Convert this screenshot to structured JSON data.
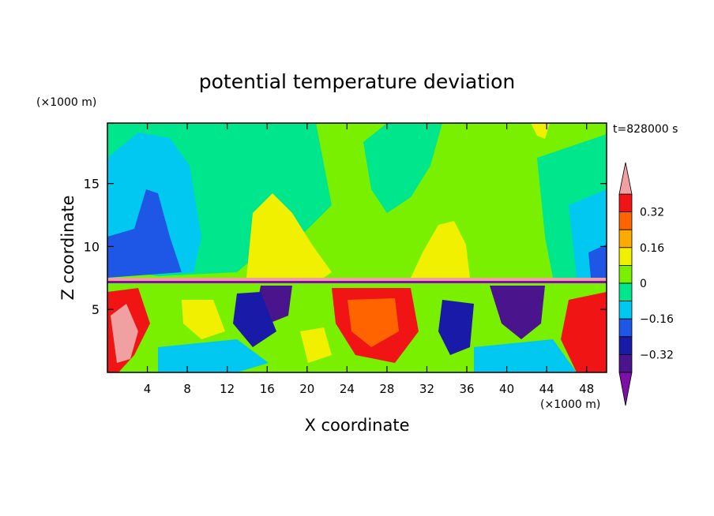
{
  "chart_data": {
    "type": "heatmap",
    "title": "potential temperature deviation",
    "xlabel": "X coordinate",
    "ylabel": "Z coordinate",
    "x_unit": "(×1000 m)",
    "y_unit": "(×1000 m)",
    "time_label": "t=828000 s",
    "xlim": [
      0,
      50
    ],
    "ylim": [
      0,
      19.8
    ],
    "x_ticks": [
      4,
      8,
      12,
      16,
      20,
      24,
      28,
      32,
      36,
      40,
      44,
      48
    ],
    "y_ticks": [
      5,
      10,
      15
    ],
    "colorbar": {
      "levels": [
        -0.4,
        -0.32,
        -0.24,
        -0.16,
        -0.08,
        0,
        0.08,
        0.16,
        0.24,
        0.32,
        0.4
      ],
      "tick_labels": [
        "0.32",
        "0.16",
        "0",
        "−0.16",
        "−0.32"
      ],
      "tick_values": [
        0.32,
        0.16,
        0,
        -0.16,
        -0.32
      ],
      "colors": [
        "#7b0fa8",
        "#4a148c",
        "#1a1aa8",
        "#1e56e6",
        "#00c8f0",
        "#00e68c",
        "#78f000",
        "#f0f000",
        "#ffaa00",
        "#ff6400",
        "#f01414",
        "#f0a0a0"
      ]
    }
  }
}
